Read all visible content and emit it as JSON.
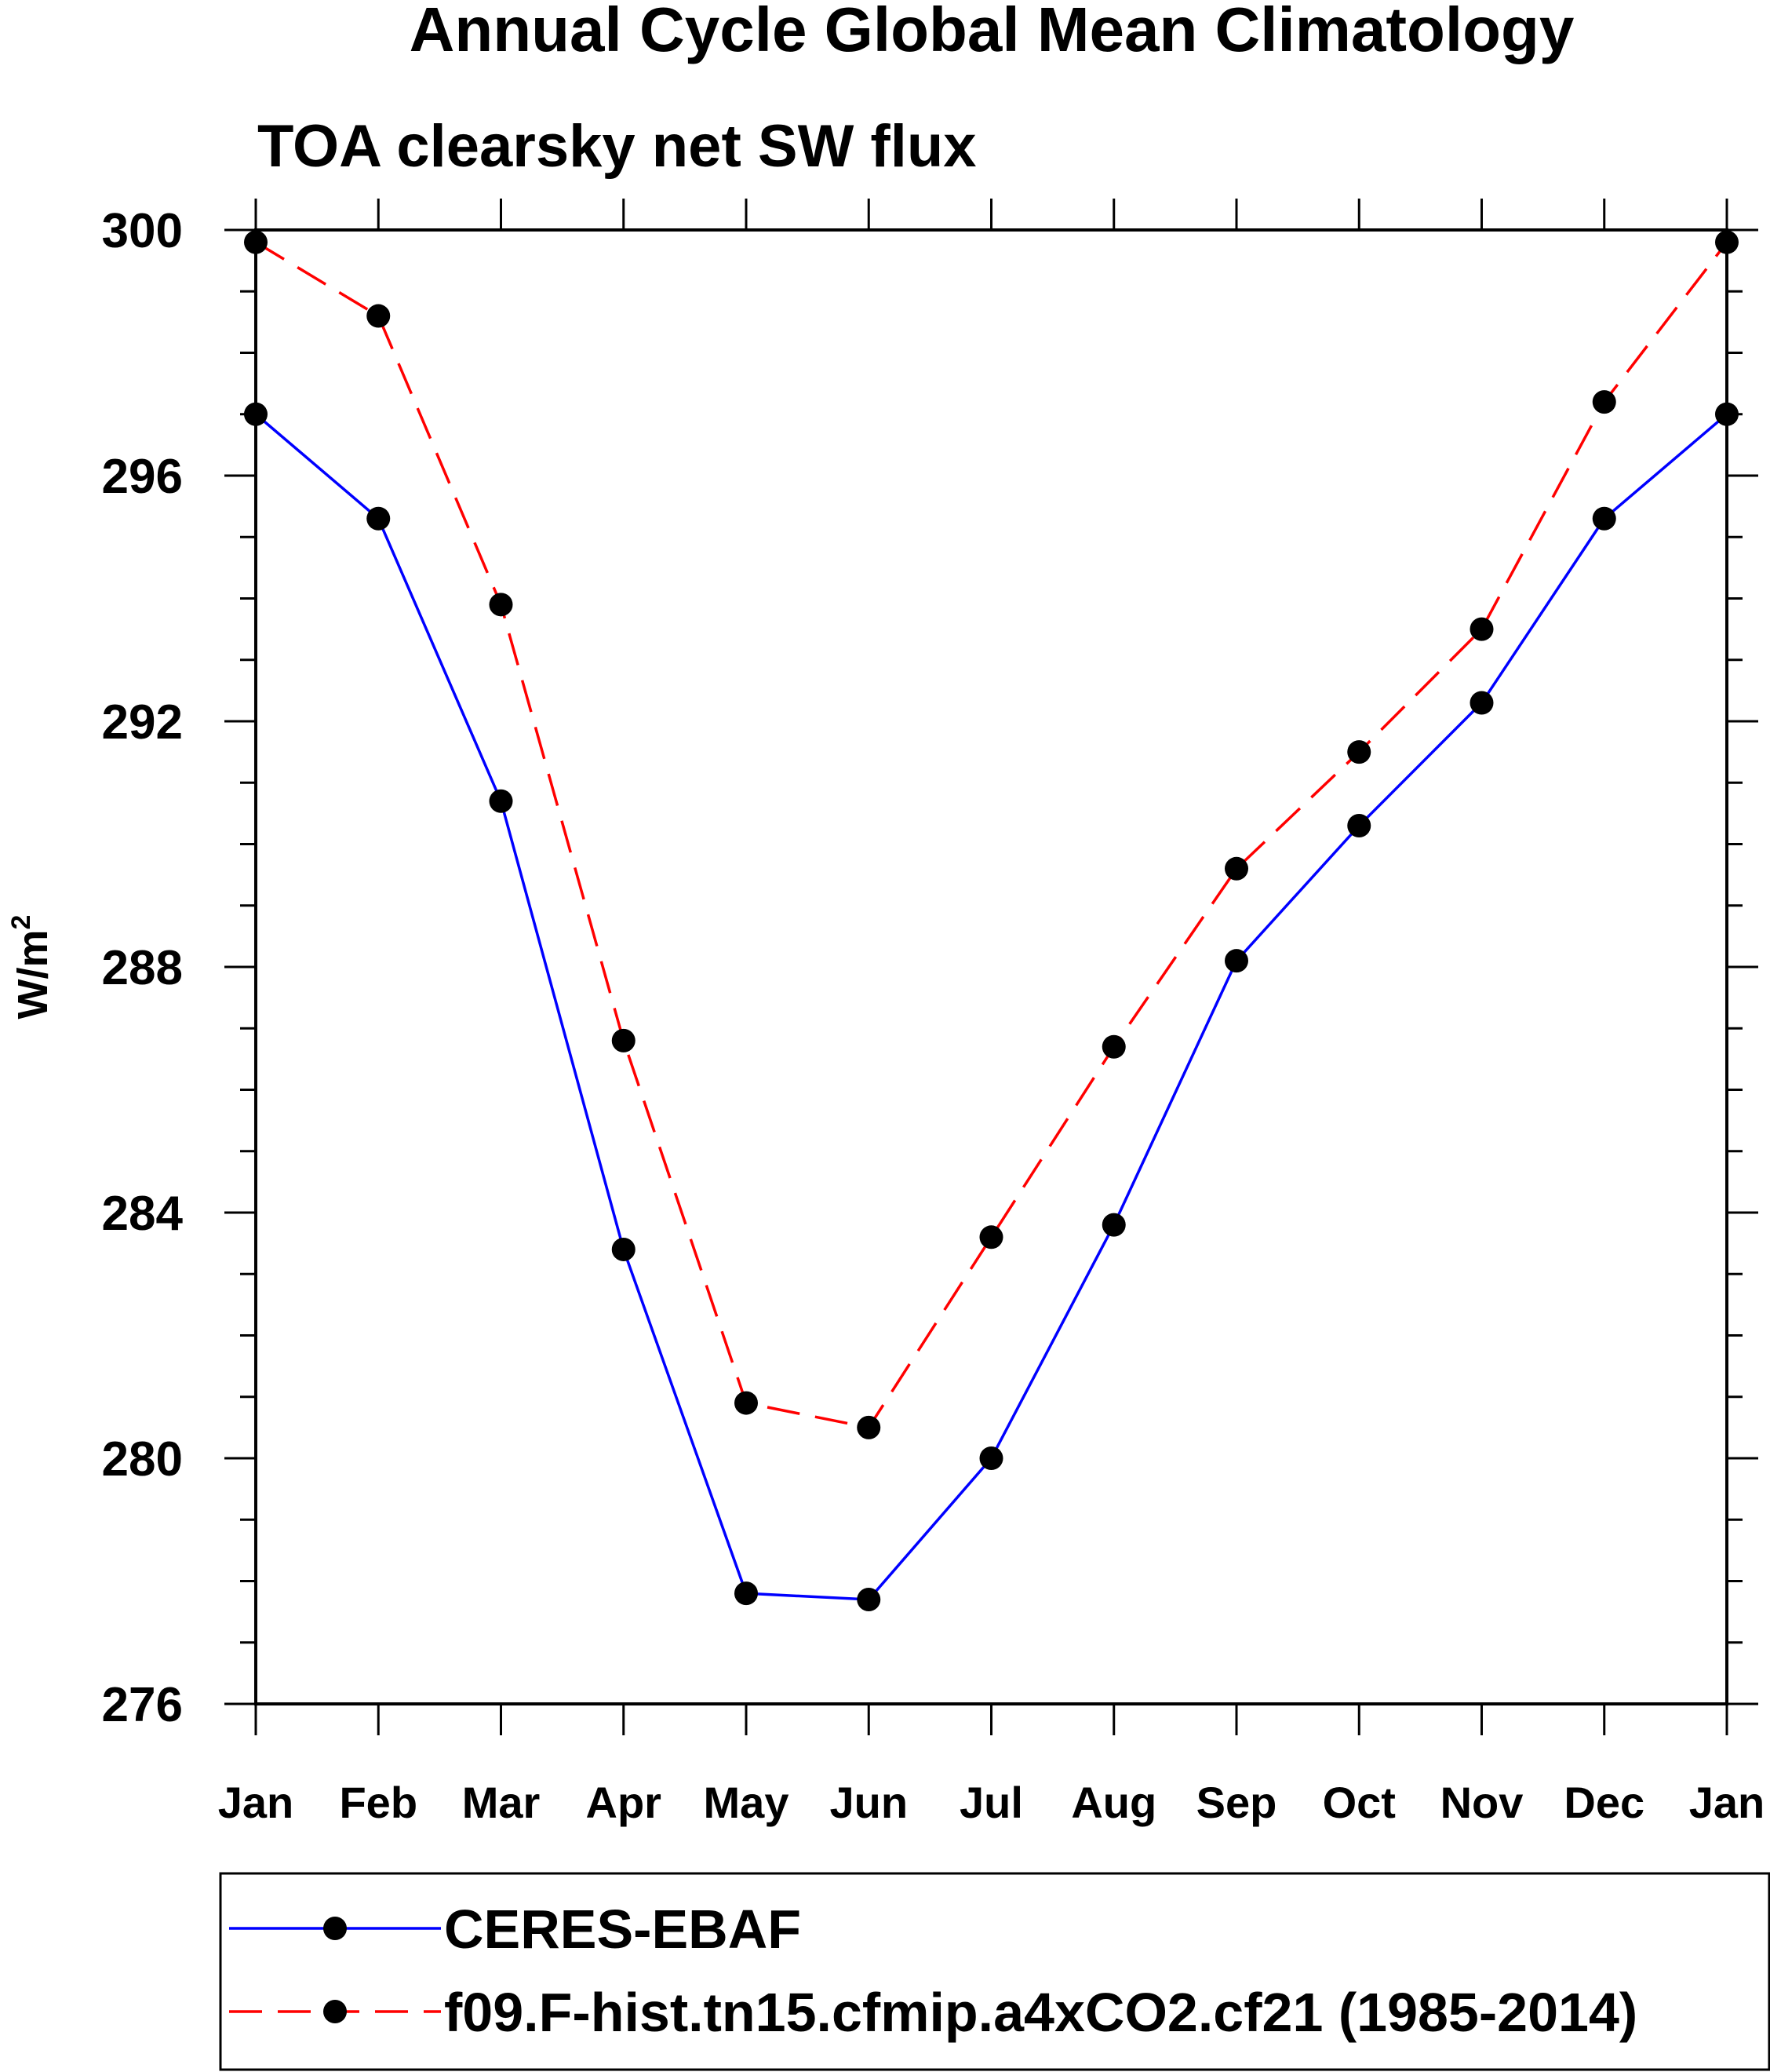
{
  "chart_data": {
    "type": "line",
    "title": "Annual Cycle Global Mean Climatology",
    "subtitle": "TOA clearsky net SW flux",
    "ylabel": "W/m",
    "ylabel_sup": "2",
    "xlabel": "",
    "categories": [
      "Jan",
      "Feb",
      "Mar",
      "Apr",
      "May",
      "Jun",
      "Jul",
      "Aug",
      "Sep",
      "Oct",
      "Nov",
      "Dec",
      "Jan"
    ],
    "ylim": [
      276,
      300
    ],
    "yticks": [
      "276",
      "280",
      "284",
      "288",
      "292",
      "296",
      "300"
    ],
    "grid": false,
    "legend_position": "bottom",
    "series": [
      {
        "name": "CERES-EBAF",
        "color": "#0000ff",
        "line_style": "solid",
        "marker": "filled-circle",
        "values": [
          297.0,
          295.3,
          290.7,
          283.4,
          277.8,
          277.7,
          280.0,
          283.8,
          288.1,
          290.3,
          292.3,
          295.3,
          297.0
        ]
      },
      {
        "name": "f09.F-hist.tn15.cfmip.a4xCO2.cf21 (1985-2014)",
        "color": "#ff0000",
        "line_style": "dashed",
        "marker": "filled-circle",
        "values": [
          299.8,
          298.6,
          293.9,
          286.8,
          280.9,
          280.5,
          283.6,
          286.7,
          289.6,
          291.5,
          293.5,
          297.2,
          299.8
        ]
      }
    ]
  }
}
